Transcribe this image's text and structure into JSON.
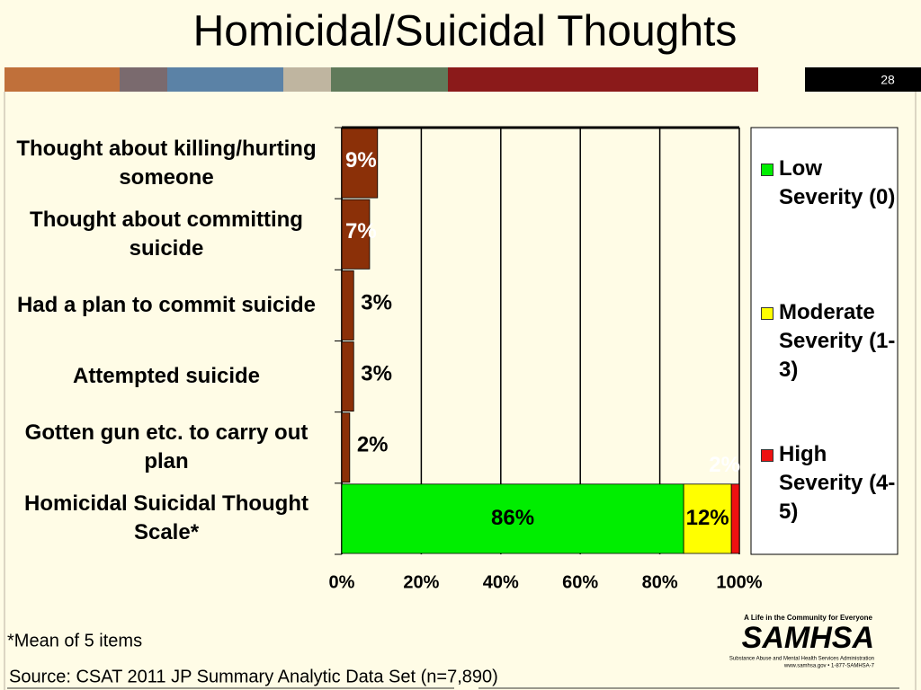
{
  "chart_data": {
    "type": "stacked_barh",
    "title": "Homicidal/Suicidal Thoughts",
    "page_number": "28",
    "categories": [
      "Thought about killing/hurting someone",
      "Thought about committing suicide",
      "Had a plan to commit suicide",
      "Attempted suicide",
      "Gotten gun etc. to carry out plan",
      "Homicidal Suicidal Thought Scale*"
    ],
    "series": [
      {
        "name": "Low Severity (0)",
        "color": "#00ee00",
        "values": [
          null,
          null,
          null,
          null,
          null,
          86
        ],
        "value_labels": [
          null,
          null,
          null,
          null,
          null,
          "86%"
        ]
      },
      {
        "name": "Moderate Severity (1-3)",
        "color": "#ffff00",
        "values": [
          null,
          null,
          null,
          null,
          null,
          12
        ],
        "value_labels": [
          null,
          null,
          null,
          null,
          null,
          "12%"
        ]
      },
      {
        "name": "High Severity (4-5)",
        "color": "#ee1111",
        "item_colors": [
          "#8b3008",
          "#8b3008",
          "#8b3008",
          "#8b3008",
          "#8b3008",
          "#ee1111"
        ],
        "values": [
          9,
          7,
          3,
          3,
          2,
          2
        ],
        "value_labels": [
          "9%",
          "7%",
          "3%",
          "3%",
          "2%",
          "2%"
        ]
      }
    ],
    "xlim": [
      0,
      100
    ],
    "xticks": [
      {
        "value": 0,
        "label": "0%"
      },
      {
        "value": 20,
        "label": "20%"
      },
      {
        "value": 40,
        "label": "40%"
      },
      {
        "value": 60,
        "label": "60%"
      },
      {
        "value": 80,
        "label": "80%"
      },
      {
        "value": 100,
        "label": "100%"
      }
    ],
    "grid": true,
    "legend": "right",
    "footnote": "*Mean of 5 items",
    "source": "Source: CSAT 2011 JP Summary Analytic Data Set (n=7,890)",
    "logo": {
      "tagline": "A Life in the Community for Everyone",
      "name": "SAMHSA",
      "full_name": "Substance Abuse and Mental Health Services Administration",
      "contact": "www.samhsa.gov • 1-877-SAMHSA-7"
    }
  }
}
